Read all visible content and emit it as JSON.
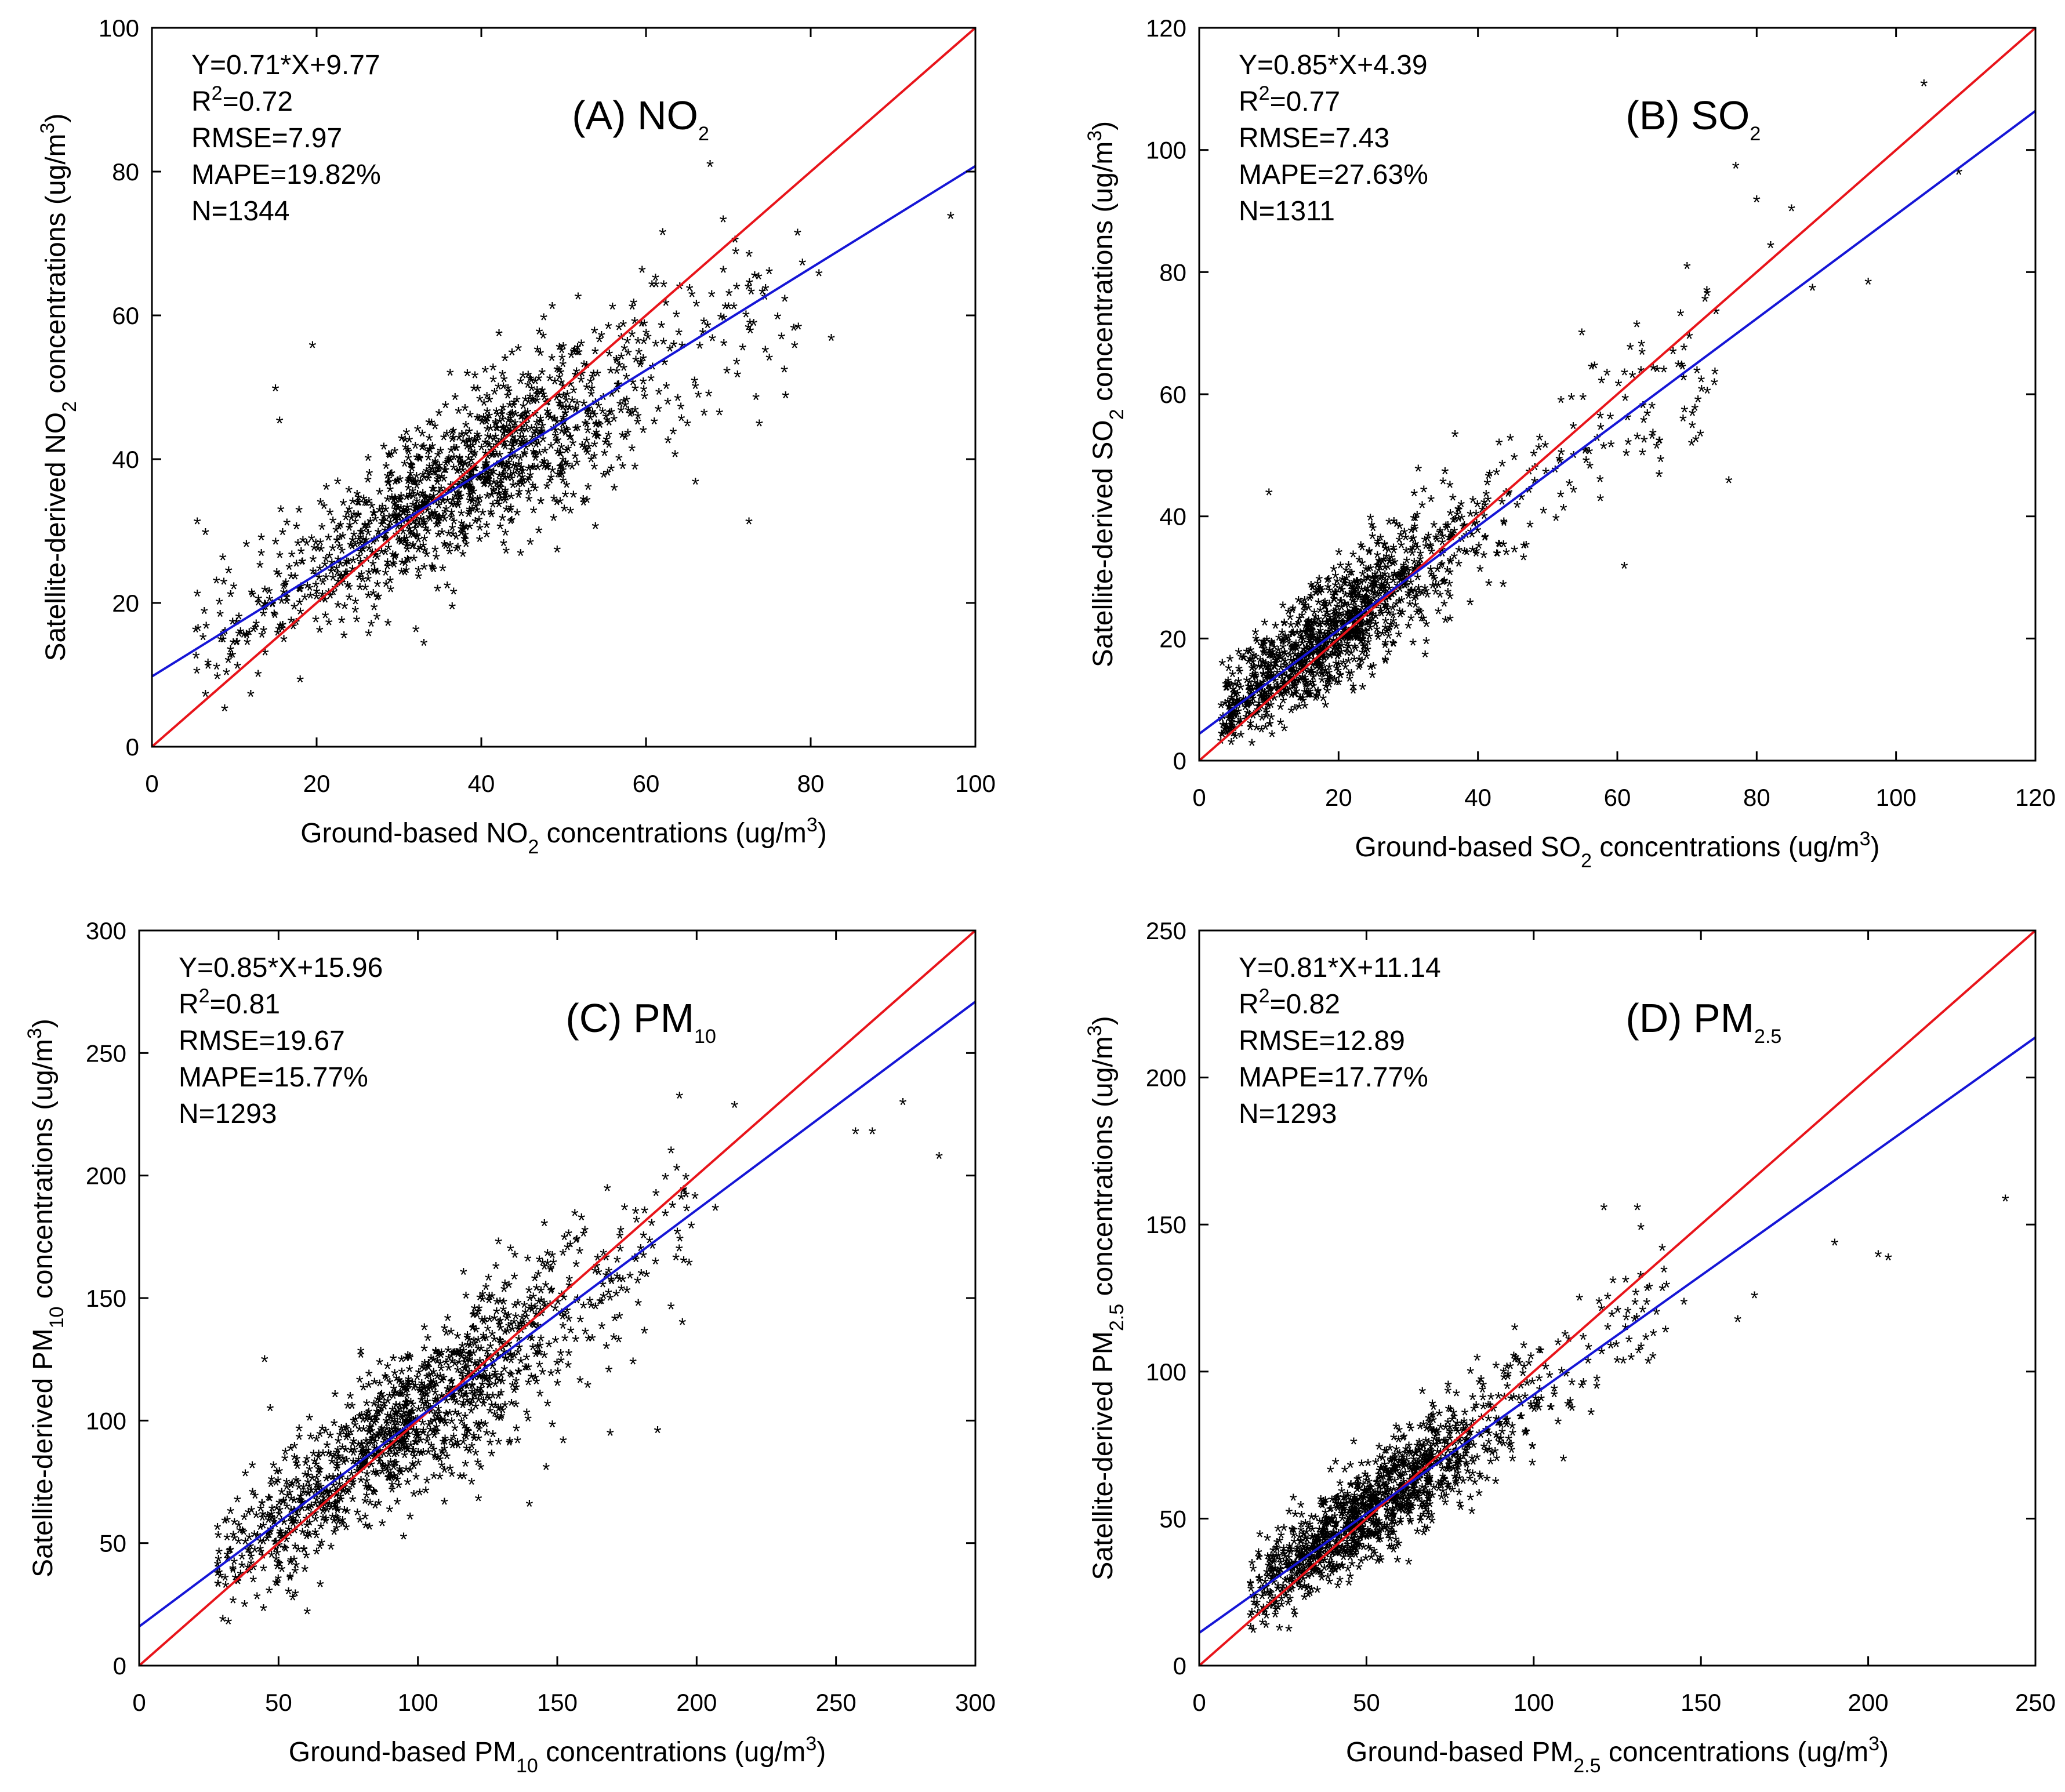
{
  "figure": {
    "marker": "*",
    "colors": {
      "identity_line": "#e8141a",
      "fit_line": "#1515d6",
      "points": "#000000"
    }
  },
  "chart_data": [
    {
      "id": "A",
      "type": "scatter",
      "title": {
        "label": "(A) NO",
        "sub": "2",
        "sup": ""
      },
      "xlabel": {
        "pre": "Ground-based NO",
        "sub": "2",
        "post": " concentrations (ug/m",
        "sup": "3",
        "end": ")"
      },
      "ylabel": {
        "pre": "Satellite-derived NO",
        "sub": "2",
        "post": " concentrations (ug/m",
        "sup": "3",
        "end": ")"
      },
      "xlim": [
        0,
        100
      ],
      "ylim": [
        0,
        100
      ],
      "xticks": [
        0,
        20,
        40,
        60,
        80,
        100
      ],
      "yticks": [
        0,
        20,
        40,
        60,
        80,
        100
      ],
      "stats": {
        "equation": "Y=0.71*X+9.77",
        "r2_prefix": "R",
        "r2_sup": "2",
        "r2_value": "=0.72",
        "rmse": "RMSE=7.97",
        "mape": "MAPE=19.82%",
        "n": "N=1344"
      },
      "fit": {
        "slope": 0.71,
        "intercept": 9.77
      },
      "identity_line": true,
      "cloud": {
        "count": 1344,
        "x_center": 38,
        "x_spread": 12.5,
        "x_min": 5,
        "x_max": 97,
        "y_noise": 6.5
      },
      "outliers": [
        [
          5.5,
          31
        ],
        [
          6.5,
          29.5
        ],
        [
          15,
          49.5
        ],
        [
          15.5,
          45
        ],
        [
          19.5,
          55.5
        ],
        [
          6.5,
          7
        ],
        [
          12,
          7
        ],
        [
          18,
          9
        ],
        [
          72.5,
          31
        ],
        [
          66,
          36.5
        ],
        [
          82.5,
          56.5
        ],
        [
          97,
          73.5
        ],
        [
          79,
          67
        ],
        [
          81,
          65.5
        ]
      ]
    },
    {
      "id": "B",
      "type": "scatter",
      "title": {
        "label": "(B) SO",
        "sub": "2",
        "sup": ""
      },
      "xlabel": {
        "pre": "Ground-based SO",
        "sub": "2",
        "post": " concentrations (ug/m",
        "sup": "3",
        "end": ")"
      },
      "ylabel": {
        "pre": "Satellite-derived SO",
        "sub": "2",
        "post": " concentrations (ug/m",
        "sup": "3",
        "end": ")"
      },
      "xlim": [
        0,
        120
      ],
      "ylim": [
        0,
        120
      ],
      "xticks": [
        0,
        20,
        40,
        60,
        80,
        100,
        120
      ],
      "yticks": [
        0,
        20,
        40,
        60,
        80,
        100,
        120
      ],
      "stats": {
        "equation": "Y=0.85*X+4.39",
        "r2_prefix": "R",
        "r2_sup": "2",
        "r2_value": "=0.77",
        "rmse": "RMSE=7.43",
        "mape": "MAPE=27.63%",
        "n": "N=1311"
      },
      "fit": {
        "slope": 0.85,
        "intercept": 4.39
      },
      "identity_line": true,
      "cloud": {
        "count": 1311,
        "x_center": 18,
        "x_spread": 10,
        "x_min": 3,
        "x_max": 92,
        "y_noise": 6
      },
      "outliers": [
        [
          104,
          110.5
        ],
        [
          109,
          96
        ],
        [
          77,
          97
        ],
        [
          80,
          91.5
        ],
        [
          85,
          90
        ],
        [
          82,
          84
        ],
        [
          96,
          78
        ],
        [
          88,
          77
        ],
        [
          61,
          31.5
        ],
        [
          76,
          45.5
        ],
        [
          10,
          43.5
        ],
        [
          66,
          46.5
        ]
      ]
    },
    {
      "id": "C",
      "type": "scatter",
      "title": {
        "label": "(C) PM",
        "sub": "10",
        "sup": ""
      },
      "xlabel": {
        "pre": "Ground-based PM",
        "sub": "10",
        "post": " concentrations (ug/m",
        "sup": "3",
        "end": ")"
      },
      "ylabel": {
        "pre": "Satellite-derived PM",
        "sub": "10",
        "post": " concentrations (ug/m",
        "sup": "3",
        "end": ")"
      },
      "xlim": [
        0,
        300
      ],
      "ylim": [
        0,
        300
      ],
      "xticks": [
        0,
        50,
        100,
        150,
        200,
        250,
        300
      ],
      "yticks": [
        0,
        50,
        100,
        150,
        200,
        250,
        300
      ],
      "stats": {
        "equation": "Y=0.85*X+15.96",
        "r2_prefix": "R",
        "r2_sup": "2",
        "r2_value": "=0.81",
        "rmse": "RMSE=19.67",
        "mape": "MAPE=15.77%",
        "n": "N=1293"
      },
      "fit": {
        "slope": 0.85,
        "intercept": 15.96
      },
      "identity_line": true,
      "cloud": {
        "count": 1293,
        "x_center": 95,
        "x_spread": 38,
        "x_min": 28,
        "x_max": 240,
        "y_noise": 17
      },
      "outliers": [
        [
          274,
          229
        ],
        [
          287,
          207
        ],
        [
          263,
          217
        ],
        [
          257,
          217
        ],
        [
          30,
          18
        ],
        [
          32,
          17
        ],
        [
          45,
          124
        ],
        [
          47,
          104
        ],
        [
          169,
          94
        ],
        [
          140,
          65
        ],
        [
          146,
          80
        ],
        [
          186,
          95
        ]
      ]
    },
    {
      "id": "D",
      "type": "scatter",
      "title": {
        "label": "(D) PM",
        "sub": "2.5",
        "sup": ""
      },
      "xlabel": {
        "pre": "Ground-based PM",
        "sub": "2.5",
        "post": " concentrations (ug/m",
        "sup": "3",
        "end": ")"
      },
      "ylabel": {
        "pre": "Satellite-derived PM",
        "sub": "2.5",
        "post": " concentrations (ug/m",
        "sup": "3",
        "end": ")"
      },
      "xlim": [
        0,
        250
      ],
      "ylim": [
        0,
        250
      ],
      "xticks": [
        0,
        50,
        100,
        150,
        200,
        250
      ],
      "yticks": [
        0,
        50,
        100,
        150,
        200,
        250
      ],
      "stats": {
        "equation": "Y=0.81*X+11.14",
        "r2_prefix": "R",
        "r2_sup": "2",
        "r2_value": "=0.82",
        "rmse": "RMSE=12.89",
        "mape": "MAPE=17.77%",
        "n": "N=1293"
      },
      "fit": {
        "slope": 0.81,
        "intercept": 11.14
      },
      "identity_line": true,
      "cloud": {
        "count": 1293,
        "x_center": 50,
        "x_spread": 22,
        "x_min": 15,
        "x_max": 172,
        "y_noise": 10
      },
      "outliers": [
        [
          241,
          158
        ],
        [
          190,
          143
        ],
        [
          203,
          139
        ],
        [
          206,
          138
        ],
        [
          161,
          117
        ],
        [
          166,
          125
        ],
        [
          121,
          155
        ],
        [
          131,
          155
        ],
        [
          20,
          13
        ],
        [
          24,
          12
        ]
      ]
    }
  ]
}
